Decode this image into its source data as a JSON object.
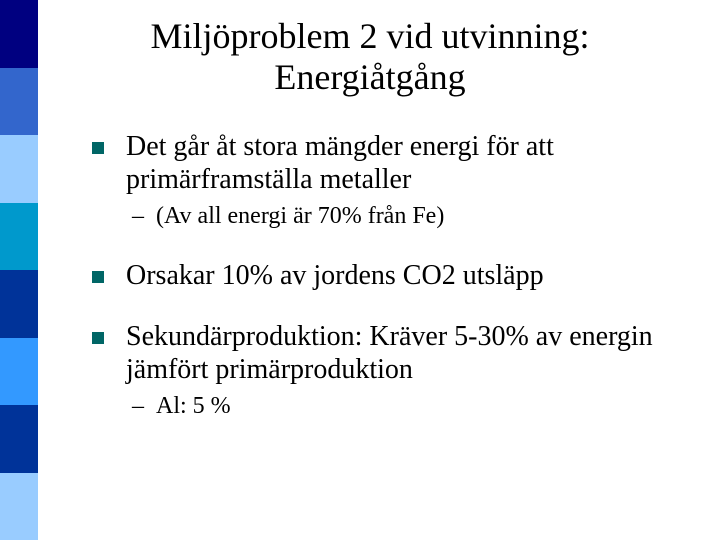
{
  "sidebar": {
    "colors": [
      "#000080",
      "#3366cc",
      "#99ccff",
      "#0099cc",
      "#003399",
      "#3399ff",
      "#003399",
      "#99ccff"
    ]
  },
  "bullet_square_color": "#006666",
  "title": {
    "line1": "Miljöproblem 2 vid utvinning:",
    "line2": "Energiåtgång",
    "fontsize": 36
  },
  "items": [
    {
      "level": 1,
      "text": "Det går åt stora mängder energi för att primärframställa metaller"
    },
    {
      "level": 2,
      "text": "(Av all energi är 70% från Fe)"
    },
    {
      "gap": true
    },
    {
      "level": 1,
      "text": "Orsakar 10% av jordens CO2 utsläpp"
    },
    {
      "gap": true
    },
    {
      "level": 1,
      "text": "Sekundärproduktion: Kräver 5-30% av energin jämfört primärproduktion"
    },
    {
      "level": 2,
      "text": "Al: 5 %"
    }
  ]
}
